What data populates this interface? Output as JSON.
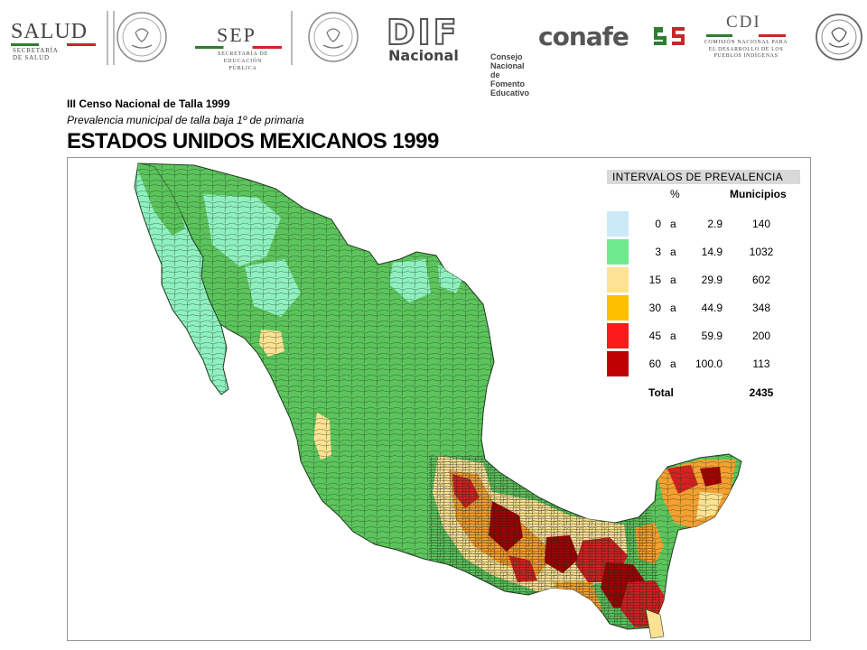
{
  "logos": {
    "salud": {
      "name": "SALUD",
      "sub": "SECRETARÍA DE SALUD"
    },
    "sep": {
      "name": "SEP",
      "sub": "SECRETARÍA DE EDUCACIÓN PÚBLICA"
    },
    "dif": {
      "name": "DIF",
      "sub": "Nacional"
    },
    "conafe": {
      "name": "conafe",
      "sub": "Consejo Nacional de Fomento Educativo"
    },
    "cdi": {
      "name": "CDI",
      "sub": "COMISIÓN NACIONAL PARA EL DESARROLLO DE LOS PUEBLOS INDÍGENAS"
    }
  },
  "header": {
    "line1": "III Censo Nacional de Talla 1999",
    "line2": "Prevalencia municipal de talla baja 1º de primaria",
    "title": "ESTADOS UNIDOS MEXICANOS 1999"
  },
  "legend": {
    "title": "INTERVALOS DE PREVALENCIA",
    "col_pct": "%",
    "col_mun": "Municipios",
    "connector": "a",
    "rows": [
      {
        "min": "0",
        "max": "2.9",
        "count": "140",
        "color": "#cce9f8"
      },
      {
        "min": "3",
        "max": "14.9",
        "count": "1032",
        "color": "#6fea8f"
      },
      {
        "min": "15",
        "max": "29.9",
        "count": "602",
        "color": "#fde293"
      },
      {
        "min": "30",
        "max": "44.9",
        "count": "348",
        "color": "#fdbf00"
      },
      {
        "min": "45",
        "max": "59.9",
        "count": "200",
        "color": "#fd1a1a"
      },
      {
        "min": "60",
        "max": "100.0",
        "count": "113",
        "color": "#bf0000"
      }
    ],
    "total_label": "Total",
    "total_value": "2435"
  },
  "map": {
    "colors": {
      "base": "#5cc45c",
      "light": "#8ff0c0",
      "yellow": "#fde293",
      "orange": "#f5a030",
      "red": "#d62020",
      "darkred": "#a00000",
      "border": "#1e3a1e"
    }
  }
}
